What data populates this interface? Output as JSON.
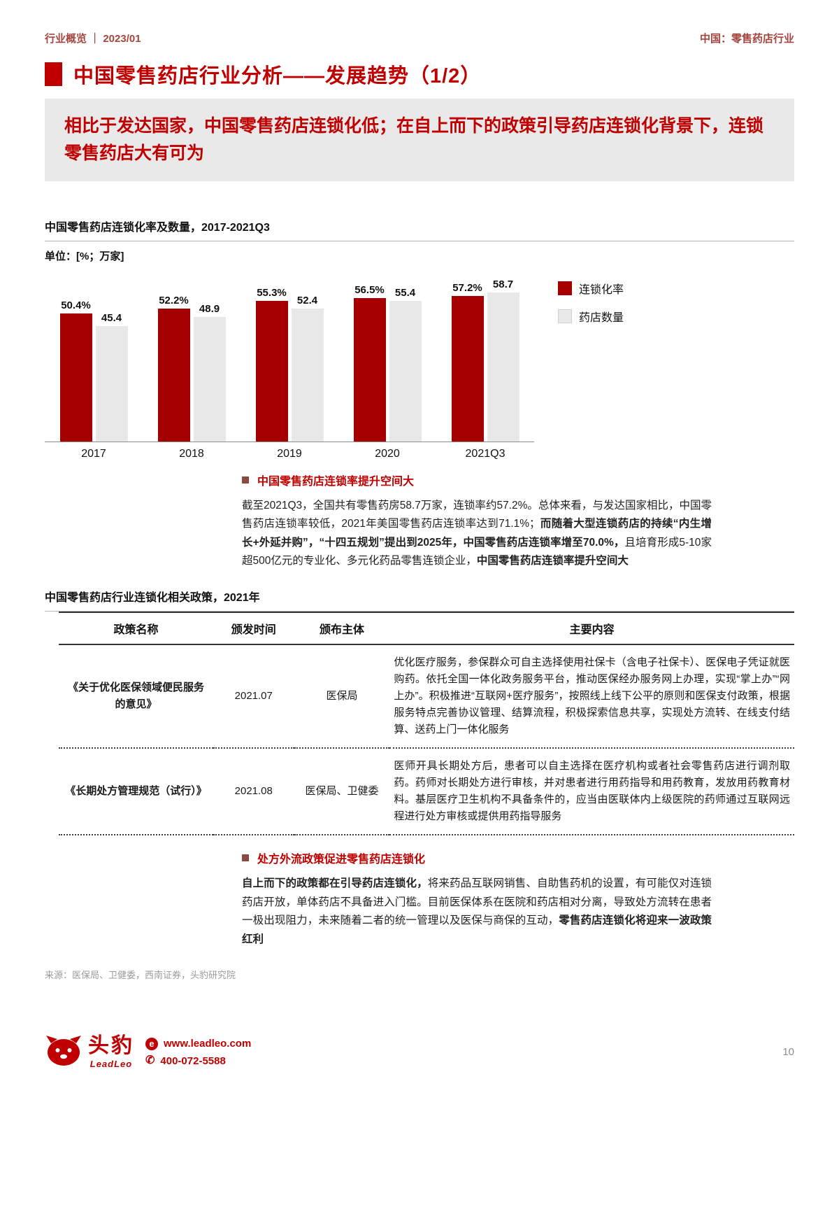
{
  "header": {
    "left": "行业概览 ｜ 2023/01",
    "right": "中国：零售药店行业"
  },
  "title": "中国零售药店行业分析——发展趋势（1/2）",
  "banner": "相比于发达国家，中国零售药店连锁化低；在自上而下的政策引导药店连锁化背景下，连锁零售药店大有可为",
  "chart": {
    "title": "中国零售药店连锁化率及数量，2017-2021Q3",
    "unit": "单位：[%；万家]"
  },
  "chart_data": {
    "type": "bar",
    "title": "中国零售药店连锁化率及数量，2017-2021Q3",
    "unit": "%；万家",
    "categories": [
      "2017",
      "2018",
      "2019",
      "2020",
      "2021Q3"
    ],
    "series": [
      {
        "name": "连锁化率",
        "color": "#a40000",
        "values": [
          50.4,
          52.2,
          55.3,
          56.5,
          57.2
        ],
        "labels": [
          "50.4%",
          "52.2%",
          "55.3%",
          "56.5%",
          "57.2%"
        ]
      },
      {
        "name": "药店数量",
        "color": "#e8e8e8",
        "values": [
          45.4,
          48.9,
          52.4,
          55.4,
          58.7
        ],
        "labels": [
          "45.4",
          "48.9",
          "52.4",
          "55.4",
          "58.7"
        ]
      }
    ],
    "ylim": [
      0,
      62
    ],
    "grid": false,
    "legend_position": "right"
  },
  "insight1": {
    "bullet": "中国零售药店连锁率提升空间大",
    "segments": [
      {
        "text": "截至2021Q3，全国共有零售药房58.7万家，连锁率约57.2%。总体来看，与发达国家相比，中国零售药店连锁率较低，2021年美国零售药店连锁率达到71.1%；",
        "bold": false
      },
      {
        "text": "而随着大型连锁药店的持续“内生增长+外延并购”，“十四五规划”提出到2025年，中国零售药店连锁率增至70.0%，",
        "bold": true
      },
      {
        "text": "且培育形成5-10家超500亿元的专业化、多元化药品零售连锁企业，",
        "bold": false
      },
      {
        "text": "中国零售药店连锁率提升空间大",
        "bold": true
      }
    ]
  },
  "policy_table": {
    "title": "中国零售药店行业连锁化相关政策，2021年",
    "headers": [
      "政策名称",
      "颁发时间",
      "颁布主体",
      "主要内容"
    ],
    "rows": [
      {
        "name": "《关于优化医保领域便民服务的意见》",
        "date": "2021.07",
        "issuer": "医保局",
        "content": "优化医疗服务，参保群众可自主选择使用社保卡（含电子社保卡）、医保电子凭证就医购药。依托全国一体化政务服务平台，推动医保经办服务网上办理，实现“掌上办”“网上办”。积极推进“互联网+医疗服务”，按照线上线下公平的原则和医保支付政策，根据服务特点完善协议管理、结算流程，积极探索信息共享，实现处方流转、在线支付结算、送药上门一体化服务"
      },
      {
        "name": "《长期处方管理规范（试行）》",
        "date": "2021.08",
        "issuer": "医保局、卫健委",
        "content": "医师开具长期处方后，患者可以自主选择在医疗机构或者社会零售药店进行调剂取药。药师对长期处方进行审核，并对患者进行用药指导和用药教育，发放用药教育材料。基层医疗卫生机构不具备条件的，应当由医联体内上级医院的药师通过互联网远程进行处方审核或提供用药指导服务"
      }
    ]
  },
  "insight2": {
    "bullet": "处方外流政策促进零售药店连锁化",
    "segments": [
      {
        "text": "自上而下的政策都在引导药店连锁化，",
        "bold": true
      },
      {
        "text": "将来药品互联网销售、自助售药机的设置，有可能仅对连锁药店开放，单体药店不具备进入门槛。目前医保体系在医院和药店相对分离，导致处方流转在患者一极出现阻力，未来随着二者的统一管理以及医保与商保的互动，",
        "bold": false
      },
      {
        "text": "零售药店连锁化将迎来一波政策红利",
        "bold": true
      }
    ]
  },
  "source": "来源：医保局、卫健委，西南证券，头豹研究院",
  "footer": {
    "brand": "头豹",
    "brand_sub": "LeadLeo",
    "website": "www.leadleo.com",
    "phone": "400-072-5588",
    "e_badge": "e",
    "page_number": "10"
  },
  "colors": {
    "brand_red": "#c00000",
    "bar_red": "#a40000",
    "bar_gray": "#e8e8e8",
    "banner_bg": "#e9e9e9",
    "bullet_square": "#8a4a42"
  }
}
